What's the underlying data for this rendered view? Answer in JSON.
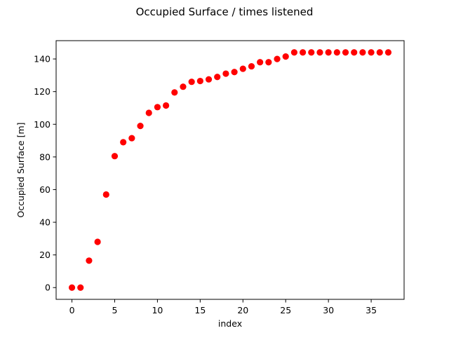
{
  "chart_data": {
    "type": "scatter",
    "title": "Occupied Surface / times listened",
    "xlabel": "index",
    "ylabel": "Occupied Surface [m]",
    "xlim": [
      -1.85,
      38.85
    ],
    "ylim": [
      -7.2,
      151.2
    ],
    "xticks": [
      0,
      5,
      10,
      15,
      20,
      25,
      30,
      35
    ],
    "yticks": [
      0,
      20,
      40,
      60,
      80,
      100,
      120,
      140
    ],
    "grid": false,
    "legend": "none",
    "marker_color": "#ff0000",
    "series": [
      {
        "x": [
          0,
          1,
          2,
          3,
          4,
          5,
          6,
          7,
          8,
          9,
          10,
          11,
          12,
          13,
          14,
          15,
          16,
          17,
          18,
          19,
          20,
          21,
          22,
          23,
          24,
          25,
          26,
          27,
          28,
          29,
          30,
          31,
          32,
          33,
          34,
          35,
          36,
          37
        ],
        "y": [
          0,
          0,
          16.5,
          28,
          57,
          80.5,
          89,
          91.5,
          99,
          107,
          110.5,
          111.5,
          119.5,
          123,
          126,
          126.5,
          127.5,
          129,
          131,
          132,
          134,
          135.5,
          138,
          138,
          140,
          141.5,
          144,
          144,
          144,
          144,
          144,
          144,
          144,
          144,
          144,
          144,
          144,
          144
        ]
      }
    ]
  }
}
